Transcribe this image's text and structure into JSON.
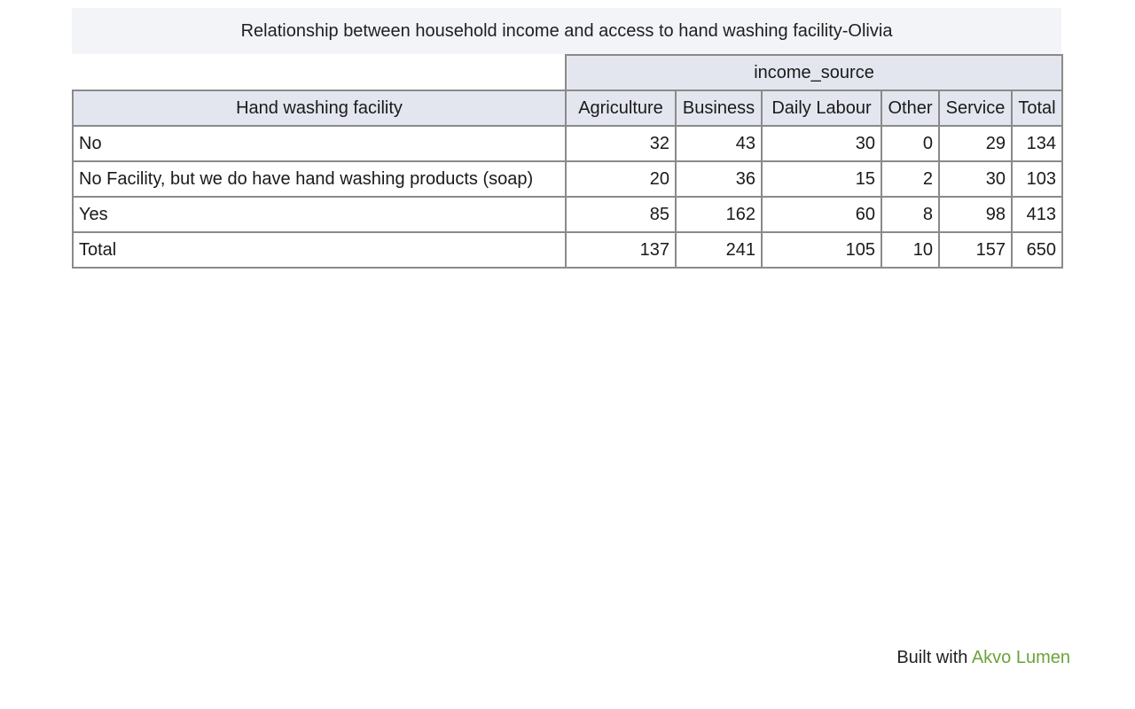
{
  "pivot": {
    "title": "Relationship between household income and access to hand washing facility-Olivia",
    "column_group_label": "income_source",
    "row_header_label": "Hand washing facility",
    "columns": [
      "Agriculture",
      "Business",
      "Daily Labour",
      "Other",
      "Service",
      "Total"
    ],
    "rows": [
      {
        "label": "No",
        "values": [
          "32",
          "43",
          "30",
          "0",
          "29",
          "134"
        ]
      },
      {
        "label": "No Facility, but we do have hand washing products (soap)",
        "values": [
          "20",
          "36",
          "15",
          "2",
          "30",
          "103"
        ]
      },
      {
        "label": "Yes",
        "values": [
          "85",
          "162",
          "60",
          "8",
          "98",
          "413"
        ]
      },
      {
        "label": "Total",
        "values": [
          "137",
          "241",
          "105",
          "10",
          "157",
          "650"
        ]
      }
    ]
  },
  "footer": {
    "prefix": "Built with",
    "brand": "Akvo Lumen",
    "brand_color": "#6aa33b"
  }
}
